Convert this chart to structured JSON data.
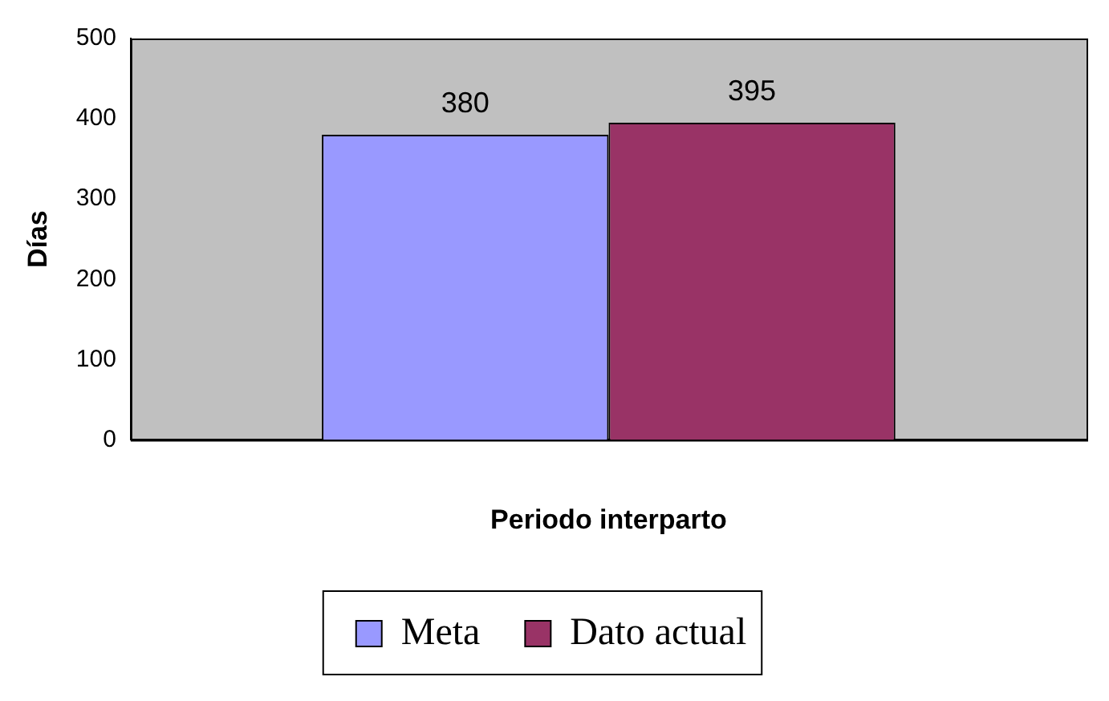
{
  "chart_data": {
    "type": "bar",
    "xlabel": "Periodo interparto",
    "ylabel": "Días",
    "categories": [
      null
    ],
    "series": [
      {
        "name": "Meta",
        "color": "#9999ff",
        "values": [
          380
        ]
      },
      {
        "name": "Dato actual",
        "color": "#993366",
        "values": [
          395
        ]
      }
    ],
    "ylim": [
      0,
      500
    ],
    "yticks": [
      0,
      100,
      200,
      300,
      400,
      500
    ],
    "grid": false,
    "legend": "bottom",
    "data_labels": true
  }
}
